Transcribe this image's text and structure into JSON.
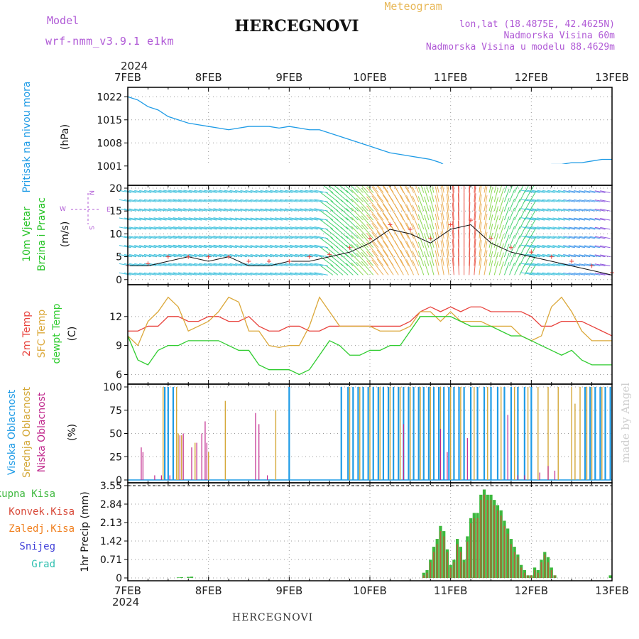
{
  "header": {
    "model_label": "Model",
    "model_name": "wrf-nmm_v3.9.1 e1km",
    "title": "HERCEGNOVI",
    "product": "Meteogram",
    "lonlat": "lon,lat (18.4875E, 42.4625N)",
    "elevation": "Nadmorska Visina 60m",
    "model_elevation": "Nadmorska Visina u modelu 88.4629m",
    "year": "2024",
    "footer_title": "HERCEGNOVI",
    "credit": "made by Angel"
  },
  "colors": {
    "pressure": "#1e9be6",
    "temp2m": "#e8423c",
    "sfc_temp": "#dba83a",
    "dewpoint": "#2fcc2f",
    "wind_label": "#25c325",
    "compass": "#b05ad6",
    "cloud_high": "#1e9be6",
    "cloud_mid": "#d4a838",
    "cloud_low": "#c0288c",
    "precip_total": "#3db83d",
    "precip_conv": "#d84a3a",
    "precip_frz": "#f08020",
    "precip_snow": "#4040d8",
    "precip_grad": "#30c0b0"
  },
  "x_axis": {
    "ticks": [
      "7FEB",
      "8FEB",
      "9FEB",
      "10FEB",
      "11FEB",
      "12FEB",
      "13FEB"
    ],
    "range_hours": [
      0,
      144
    ]
  },
  "chart_data": [
    {
      "type": "line",
      "id": "pressure",
      "ylabel": "(hPa)",
      "side_label": "Pritisak na nivou mora",
      "ylim": [
        996,
        1024
      ],
      "yticks": [
        1001,
        1008,
        1015,
        1022
      ],
      "x_hours": [
        0,
        3,
        6,
        9,
        12,
        15,
        18,
        21,
        24,
        27,
        30,
        33,
        36,
        39,
        42,
        45,
        48,
        51,
        54,
        57,
        60,
        63,
        66,
        69,
        72,
        75,
        78,
        81,
        84,
        87,
        90,
        93,
        96,
        99,
        102,
        105,
        108,
        111,
        114,
        117,
        120,
        123,
        126,
        129,
        132,
        135,
        138,
        141,
        144
      ],
      "values": [
        1022,
        1021,
        1019,
        1018,
        1016,
        1015,
        1014,
        1013.5,
        1013,
        1012.5,
        1012,
        1012.5,
        1013,
        1013,
        1013,
        1012.5,
        1013,
        1012.5,
        1012,
        1012,
        1011,
        1010,
        1009,
        1008,
        1007,
        1006,
        1005,
        1004.5,
        1004,
        1003.5,
        1003,
        1002,
        1000,
        998,
        997.5,
        998.5,
        1000,
        1000,
        1000,
        1000,
        1000.5,
        1001,
        1001.5,
        1001.5,
        1002,
        1002,
        1002.5,
        1003,
        1003
      ]
    },
    {
      "type": "line",
      "id": "wind",
      "ylabel": "(m/s)",
      "side_label_1": "10m Vjetar",
      "side_label_2": "Brzina i Pravac",
      "compass_labels": {
        "n": "N",
        "s": "S",
        "e": "E",
        "w": "W"
      },
      "ylim": [
        -0.5,
        20
      ],
      "yticks": [
        0,
        5,
        10,
        15,
        20
      ],
      "x_hours": [
        0,
        6,
        12,
        18,
        24,
        30,
        36,
        42,
        48,
        54,
        60,
        66,
        72,
        78,
        84,
        90,
        96,
        102,
        108,
        114,
        120,
        126,
        132,
        138,
        144
      ],
      "speed": [
        3,
        3,
        4,
        5,
        4,
        5,
        3,
        3,
        4,
        4,
        5,
        6,
        8,
        11,
        10,
        8,
        11,
        12,
        8,
        6,
        5,
        4,
        3,
        2,
        1
      ],
      "gust": [
        3,
        3.5,
        5,
        5,
        5,
        5,
        4,
        4,
        4,
        5,
        5.5,
        7,
        9,
        12,
        11,
        9,
        12,
        13,
        9,
        7,
        6,
        5,
        4,
        3,
        1.5
      ]
    },
    {
      "type": "line",
      "id": "temperature",
      "ylabel": "(C)",
      "side_label_1": "2m Temp",
      "side_label_2": "SFC Temp",
      "side_label_3": "dewpt Temp",
      "ylim": [
        5.3,
        15
      ],
      "yticks": [
        6,
        9,
        12
      ],
      "x_hours": [
        0,
        3,
        6,
        9,
        12,
        15,
        18,
        21,
        24,
        27,
        30,
        33,
        36,
        39,
        42,
        45,
        48,
        51,
        54,
        57,
        60,
        63,
        66,
        69,
        72,
        75,
        78,
        81,
        84,
        87,
        90,
        93,
        96,
        99,
        102,
        105,
        108,
        111,
        114,
        117,
        120,
        123,
        126,
        129,
        132,
        135,
        138,
        141,
        144
      ],
      "t2m": [
        10.5,
        10.5,
        11,
        11,
        12,
        12,
        11.5,
        11.5,
        12,
        12,
        11.5,
        11.5,
        12,
        11,
        10.5,
        10.5,
        11,
        11,
        10.5,
        10.5,
        11,
        11,
        11,
        11,
        11,
        11,
        11,
        11,
        11.5,
        12.5,
        13,
        12.5,
        13,
        12.5,
        13,
        13,
        12.5,
        12.5,
        12.5,
        12.5,
        12,
        11,
        11,
        11.5,
        11.5,
        11.5,
        11,
        10.5,
        10
      ],
      "sfc": [
        10,
        9,
        11.5,
        12.5,
        14,
        13,
        10.5,
        11,
        11.5,
        12.5,
        14,
        13.5,
        10.5,
        10.5,
        9,
        8.8,
        9,
        9,
        11,
        14,
        12.5,
        11,
        11,
        11,
        11,
        10.5,
        10.5,
        10.5,
        11,
        12.5,
        12.5,
        11.5,
        12.5,
        11.5,
        11.5,
        11.5,
        11,
        11,
        11,
        10,
        9.5,
        10,
        13,
        14,
        12.5,
        10.5,
        9.5,
        9.5,
        9.5
      ],
      "dew": [
        10,
        7.5,
        7,
        8.5,
        9,
        9,
        9.5,
        9.5,
        9.5,
        9.5,
        9,
        8.5,
        8.5,
        7,
        6.5,
        6.5,
        6.5,
        6,
        6.5,
        8,
        9.5,
        9,
        8,
        8,
        8.5,
        8.5,
        9,
        9,
        10.5,
        12,
        12,
        12,
        12,
        11.5,
        11,
        11,
        11,
        10.5,
        10,
        10,
        9.5,
        9,
        8.5,
        8,
        8.5,
        7.5,
        7,
        7,
        7
      ]
    },
    {
      "type": "bar",
      "id": "cloud",
      "ylabel": "(%)",
      "side_label_1": "Visoka Oblacnost",
      "side_label_2": "Srednja Oblacnost",
      "side_label_3": "Niska Oblacnost",
      "ylim": [
        0,
        100
      ],
      "yticks": [
        0,
        25,
        50,
        75,
        100
      ],
      "high": [
        [
          11,
          100
        ],
        [
          12,
          100
        ],
        [
          13.5,
          100
        ],
        [
          48,
          100
        ],
        [
          63.5,
          100
        ],
        [
          65.5,
          100
        ],
        [
          67,
          100
        ],
        [
          68.5,
          100
        ],
        [
          70,
          100
        ],
        [
          71.5,
          100
        ],
        [
          73,
          100
        ],
        [
          74.5,
          100
        ],
        [
          76,
          100
        ],
        [
          77.5,
          100
        ],
        [
          79,
          100
        ],
        [
          80.5,
          100
        ],
        [
          82,
          100
        ],
        [
          83.5,
          100
        ],
        [
          85,
          100
        ],
        [
          86.5,
          100
        ],
        [
          88,
          100
        ],
        [
          89.5,
          100
        ],
        [
          91,
          100
        ],
        [
          92.5,
          100
        ],
        [
          94,
          100
        ],
        [
          95.5,
          100
        ],
        [
          97,
          100
        ],
        [
          98.5,
          100
        ],
        [
          100,
          100
        ],
        [
          102,
          100
        ],
        [
          104,
          100
        ],
        [
          106,
          100
        ],
        [
          108,
          100
        ],
        [
          110,
          100
        ],
        [
          112,
          100
        ],
        [
          114,
          100
        ],
        [
          116,
          100
        ],
        [
          118,
          100
        ],
        [
          120,
          100
        ],
        [
          136,
          100
        ],
        [
          137.5,
          100
        ],
        [
          139,
          100
        ],
        [
          140.5,
          100
        ],
        [
          142,
          100
        ],
        [
          143.5,
          100
        ]
      ],
      "mid": [
        [
          10.5,
          100
        ],
        [
          14.5,
          100
        ],
        [
          15,
          50
        ],
        [
          16,
          48
        ],
        [
          20,
          40
        ],
        [
          24,
          30
        ],
        [
          29,
          85
        ],
        [
          44,
          75
        ],
        [
          66,
          100
        ],
        [
          69,
          100
        ],
        [
          72,
          100
        ],
        [
          75,
          100
        ],
        [
          78,
          100
        ],
        [
          81,
          100
        ],
        [
          84,
          100
        ],
        [
          87,
          100
        ],
        [
          90,
          100
        ],
        [
          93,
          100
        ],
        [
          96,
          100
        ],
        [
          99,
          100
        ],
        [
          103,
          100
        ],
        [
          107,
          100
        ],
        [
          111,
          100
        ],
        [
          115,
          100
        ],
        [
          119,
          100
        ],
        [
          122,
          100
        ],
        [
          125,
          100
        ],
        [
          128,
          100
        ],
        [
          132,
          100
        ],
        [
          133,
          82
        ],
        [
          134.5,
          100
        ],
        [
          136.5,
          100
        ],
        [
          138,
          100
        ],
        [
          141,
          100
        ]
      ],
      "low": [
        [
          4,
          35
        ],
        [
          4.5,
          30
        ],
        [
          8,
          5
        ],
        [
          10,
          5
        ],
        [
          12.5,
          5
        ],
        [
          15.5,
          48
        ],
        [
          16.5,
          50
        ],
        [
          19,
          35
        ],
        [
          20.5,
          40
        ],
        [
          22,
          50
        ],
        [
          23,
          63
        ],
        [
          23.5,
          40
        ],
        [
          38,
          72
        ],
        [
          39,
          60
        ],
        [
          41.5,
          5
        ],
        [
          82,
          60
        ],
        [
          93,
          55
        ],
        [
          95,
          30
        ],
        [
          101,
          45
        ],
        [
          113,
          70
        ],
        [
          116,
          5
        ],
        [
          118,
          5
        ],
        [
          122.5,
          8
        ],
        [
          125,
          15
        ],
        [
          127,
          10
        ]
      ]
    },
    {
      "type": "bar",
      "id": "precip",
      "ylabel": "1hr Precip (mm)",
      "side_label_1": "Ukupna Kisa",
      "side_label_2": "Konvek.Kisa",
      "side_label_3": "Zaledj.Kisa",
      "side_label_4": "Snijeg",
      "side_label_5": "Grad",
      "ylim": [
        0,
        3.55
      ],
      "yticks": [
        0,
        0.71,
        1.42,
        2.13,
        2.84,
        3.55
      ],
      "ytick_labels": [
        "0",
        "0.71",
        "1.42",
        "2.13",
        "2.84",
        "3.55"
      ],
      "x_hours": [
        88,
        89,
        90,
        91,
        92,
        93,
        94,
        95,
        96,
        97,
        98,
        99,
        100,
        101,
        102,
        103,
        104,
        105,
        106,
        107,
        108,
        109,
        110,
        111,
        112,
        113,
        114,
        115,
        116,
        117,
        118,
        119,
        120,
        121,
        122,
        123,
        124,
        125,
        126,
        127,
        128,
        129,
        130,
        131,
        132
      ],
      "total": [
        0.2,
        0.3,
        0.7,
        1.2,
        1.5,
        2.0,
        1.8,
        1.1,
        0.5,
        0.7,
        1.5,
        1.2,
        0.7,
        1.6,
        2.3,
        2.5,
        2.5,
        3.2,
        3.4,
        3.2,
        3.2,
        3.0,
        2.8,
        2.6,
        2.2,
        1.9,
        1.5,
        1.2,
        0.9,
        0.5,
        0.3,
        0.1,
        0.1,
        0.4,
        0.3,
        0.7,
        1.0,
        0.8,
        0.4,
        0.1,
        0.0,
        0.0,
        0.0,
        0.0,
        0.0
      ],
      "convective": [
        0.1,
        0.2,
        0.6,
        1.0,
        1.3,
        1.8,
        1.6,
        1.0,
        0.4,
        0.6,
        1.3,
        1.0,
        0.6,
        1.4,
        2.1,
        2.3,
        2.3,
        3.0,
        3.2,
        3.0,
        3.0,
        2.8,
        2.6,
        2.4,
        2.0,
        1.7,
        1.3,
        1.0,
        0.8,
        0.4,
        0.2,
        0.1,
        0.1,
        0.3,
        0.2,
        0.6,
        0.9,
        0.6,
        0.3,
        0.1,
        0.0,
        0.0,
        0.0,
        0.0,
        0.0
      ],
      "small_total_x": [
        15,
        16,
        18,
        19,
        143.5
      ],
      "small_total_v": [
        0.02,
        0.03,
        0.04,
        0.05,
        0.1
      ]
    }
  ]
}
